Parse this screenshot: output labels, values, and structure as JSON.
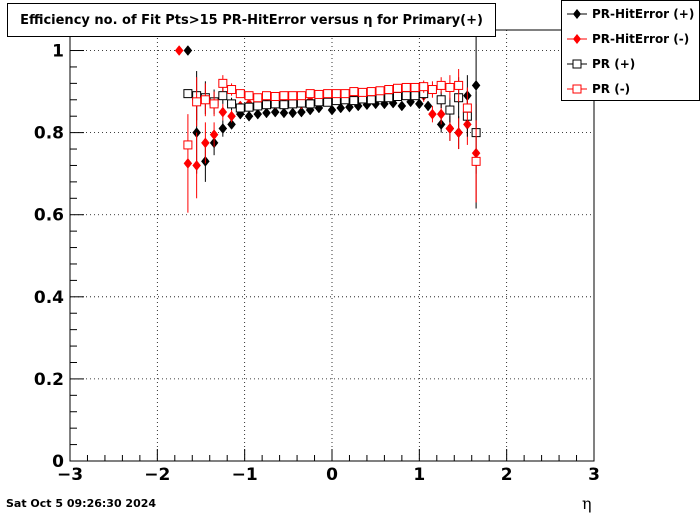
{
  "chart_data": {
    "type": "scatter",
    "title": "Efficiency no. of Fit Pts>15 PR-HitError versus η for Primary(+)",
    "xlabel": "η",
    "ylabel": "",
    "xlim": [
      -3,
      3
    ],
    "ylim": [
      0,
      1.05
    ],
    "x_ticks": [
      "−3",
      "−2",
      "−1",
      "0",
      "1",
      "2",
      "3"
    ],
    "y_ticks": [
      "0",
      "0.2",
      "0.4",
      "0.6",
      "0.8",
      "1"
    ],
    "grid": true,
    "legend_position": "top-right",
    "series": [
      {
        "name": "PR-HitError (+)",
        "color": "#000000",
        "marker": "filled-diamond",
        "points": [
          [
            -1.65,
            1.0,
            0.0
          ],
          [
            -1.55,
            0.8,
            0.1
          ],
          [
            -1.45,
            0.73,
            0.05
          ],
          [
            -1.35,
            0.775,
            0.03
          ],
          [
            -1.25,
            0.81,
            0.02
          ],
          [
            -1.15,
            0.82,
            0.01
          ],
          [
            -1.05,
            0.845,
            0.01
          ],
          [
            -0.95,
            0.84,
            0.008
          ],
          [
            -0.85,
            0.845,
            0.008
          ],
          [
            -0.75,
            0.848,
            0.008
          ],
          [
            -0.65,
            0.85,
            0.008
          ],
          [
            -0.55,
            0.848,
            0.008
          ],
          [
            -0.45,
            0.848,
            0.008
          ],
          [
            -0.35,
            0.85,
            0.008
          ],
          [
            -0.25,
            0.855,
            0.008
          ],
          [
            -0.15,
            0.86,
            0.008
          ],
          [
            0.0,
            0.855,
            0.008
          ],
          [
            0.1,
            0.86,
            0.008
          ],
          [
            0.2,
            0.862,
            0.008
          ],
          [
            0.3,
            0.865,
            0.008
          ],
          [
            0.4,
            0.868,
            0.008
          ],
          [
            0.5,
            0.87,
            0.008
          ],
          [
            0.6,
            0.87,
            0.008
          ],
          [
            0.7,
            0.872,
            0.008
          ],
          [
            0.8,
            0.865,
            0.008
          ],
          [
            0.9,
            0.875,
            0.01
          ],
          [
            1.0,
            0.87,
            0.01
          ],
          [
            1.1,
            0.865,
            0.01
          ],
          [
            1.25,
            0.82,
            0.02
          ],
          [
            1.35,
            0.81,
            0.03
          ],
          [
            1.45,
            0.8,
            0.04
          ],
          [
            1.55,
            0.89,
            0.05
          ],
          [
            1.65,
            0.915,
            0.3
          ]
        ]
      },
      {
        "name": "PR-HitError (-)",
        "color": "#ff0000",
        "marker": "filled-diamond",
        "points": [
          [
            -1.75,
            1.0,
            0.0
          ],
          [
            -1.65,
            0.725,
            0.12
          ],
          [
            -1.55,
            0.72,
            0.08
          ],
          [
            -1.45,
            0.775,
            0.05
          ],
          [
            -1.35,
            0.795,
            0.03
          ],
          [
            -1.25,
            0.85,
            0.02
          ],
          [
            -1.15,
            0.84,
            0.015
          ],
          [
            -1.05,
            0.865,
            0.01
          ],
          [
            -0.95,
            0.87,
            0.01
          ],
          [
            -0.85,
            0.87,
            0.01
          ],
          [
            -0.75,
            0.872,
            0.01
          ],
          [
            -0.65,
            0.87,
            0.01
          ],
          [
            -0.55,
            0.872,
            0.01
          ],
          [
            -0.45,
            0.875,
            0.01
          ],
          [
            -0.35,
            0.87,
            0.01
          ],
          [
            -0.25,
            0.878,
            0.01
          ],
          [
            -0.15,
            0.878,
            0.01
          ],
          [
            -0.05,
            0.88,
            0.01
          ],
          [
            0.05,
            0.882,
            0.01
          ],
          [
            0.15,
            0.885,
            0.01
          ],
          [
            0.25,
            0.883,
            0.01
          ],
          [
            0.35,
            0.885,
            0.01
          ],
          [
            0.45,
            0.888,
            0.01
          ],
          [
            0.55,
            0.89,
            0.01
          ],
          [
            0.65,
            0.89,
            0.01
          ],
          [
            0.75,
            0.893,
            0.01
          ],
          [
            0.85,
            0.895,
            0.01
          ],
          [
            0.95,
            0.892,
            0.01
          ],
          [
            1.05,
            0.89,
            0.015
          ],
          [
            1.15,
            0.845,
            0.02
          ],
          [
            1.25,
            0.845,
            0.025
          ],
          [
            1.35,
            0.81,
            0.03
          ],
          [
            1.45,
            0.8,
            0.04
          ],
          [
            1.55,
            0.82,
            0.05
          ],
          [
            1.65,
            0.75,
            0.12
          ]
        ]
      },
      {
        "name": "PR (+)",
        "color": "#000000",
        "marker": "open-square",
        "points": [
          [
            -1.65,
            0.895,
            0.0
          ],
          [
            -1.55,
            0.89,
            0.06
          ],
          [
            -1.45,
            0.885,
            0.04
          ],
          [
            -1.35,
            0.875,
            0.03
          ],
          [
            -1.25,
            0.89,
            0.02
          ],
          [
            -1.15,
            0.87,
            0.015
          ],
          [
            -1.05,
            0.86,
            0.01
          ],
          [
            -0.95,
            0.862,
            0.01
          ],
          [
            -0.85,
            0.865,
            0.01
          ],
          [
            -0.75,
            0.868,
            0.01
          ],
          [
            -0.65,
            0.87,
            0.01
          ],
          [
            -0.55,
            0.868,
            0.01
          ],
          [
            -0.45,
            0.87,
            0.01
          ],
          [
            -0.35,
            0.872,
            0.01
          ],
          [
            -0.25,
            0.87,
            0.01
          ],
          [
            -0.15,
            0.875,
            0.01
          ],
          [
            -0.05,
            0.874,
            0.01
          ],
          [
            0.05,
            0.878,
            0.01
          ],
          [
            0.15,
            0.88,
            0.01
          ],
          [
            0.25,
            0.878,
            0.01
          ],
          [
            0.35,
            0.882,
            0.01
          ],
          [
            0.45,
            0.88,
            0.01
          ],
          [
            0.55,
            0.885,
            0.01
          ],
          [
            0.65,
            0.885,
            0.01
          ],
          [
            0.75,
            0.888,
            0.01
          ],
          [
            0.85,
            0.89,
            0.01
          ],
          [
            0.95,
            0.89,
            0.01
          ],
          [
            1.05,
            0.895,
            0.015
          ],
          [
            1.25,
            0.88,
            0.02
          ],
          [
            1.35,
            0.855,
            0.03
          ],
          [
            1.45,
            0.885,
            0.05
          ],
          [
            1.55,
            0.84,
            0.05
          ],
          [
            1.65,
            0.8,
            0.1
          ]
        ]
      },
      {
        "name": "PR (-)",
        "color": "#ff0000",
        "marker": "open-square",
        "points": [
          [
            -1.65,
            0.77,
            0.0
          ],
          [
            -1.55,
            0.875,
            0.06
          ],
          [
            -1.45,
            0.88,
            0.04
          ],
          [
            -1.35,
            0.87,
            0.03
          ],
          [
            -1.25,
            0.92,
            0.02
          ],
          [
            -1.15,
            0.905,
            0.015
          ],
          [
            -1.05,
            0.895,
            0.01
          ],
          [
            -0.95,
            0.89,
            0.01
          ],
          [
            -0.85,
            0.885,
            0.01
          ],
          [
            -0.75,
            0.89,
            0.01
          ],
          [
            -0.65,
            0.888,
            0.01
          ],
          [
            -0.55,
            0.89,
            0.01
          ],
          [
            -0.45,
            0.89,
            0.01
          ],
          [
            -0.35,
            0.89,
            0.01
          ],
          [
            -0.25,
            0.895,
            0.01
          ],
          [
            -0.15,
            0.893,
            0.01
          ],
          [
            -0.05,
            0.895,
            0.01
          ],
          [
            0.05,
            0.895,
            0.01
          ],
          [
            0.15,
            0.895,
            0.01
          ],
          [
            0.25,
            0.9,
            0.01
          ],
          [
            0.35,
            0.898,
            0.01
          ],
          [
            0.45,
            0.9,
            0.01
          ],
          [
            0.55,
            0.902,
            0.01
          ],
          [
            0.65,
            0.905,
            0.01
          ],
          [
            0.75,
            0.908,
            0.01
          ],
          [
            0.85,
            0.91,
            0.01
          ],
          [
            0.95,
            0.91,
            0.01
          ],
          [
            1.05,
            0.912,
            0.015
          ],
          [
            1.15,
            0.905,
            0.02
          ],
          [
            1.25,
            0.915,
            0.02
          ],
          [
            1.35,
            0.91,
            0.03
          ],
          [
            1.45,
            0.915,
            0.04
          ],
          [
            1.55,
            0.86,
            0.05
          ],
          [
            1.65,
            0.73,
            0.1
          ]
        ]
      }
    ]
  },
  "timestamp": "Sat Oct  5 09:26:30 2024"
}
